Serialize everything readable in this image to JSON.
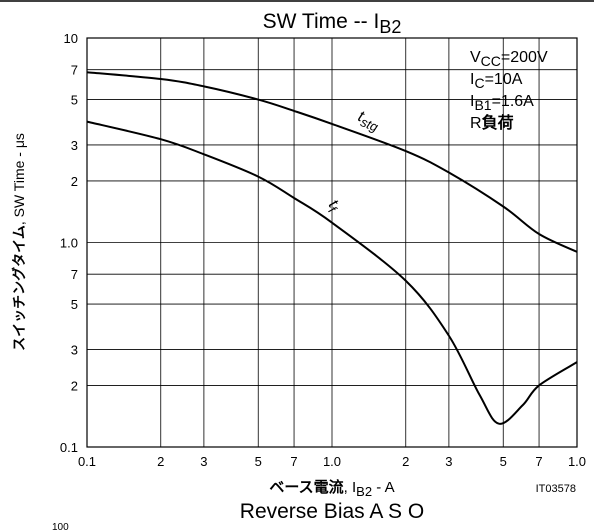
{
  "chart_data": {
    "type": "line",
    "title": {
      "text": "SW Time  --  I",
      "sub": "B2"
    },
    "ylabel": {
      "bold": "スイッチングタイム",
      "rest": ", SW Time  -  μs"
    },
    "xlabel": {
      "bold": "ベース電流",
      "text": ", I",
      "sub": "B2",
      "rest": "  -  A"
    },
    "code": "IT03578",
    "next_title": "Reverse Bias A S O",
    "next_tick": "100",
    "conditions": [
      {
        "text": "V",
        "sub": "CC",
        "rest": "=200V"
      },
      {
        "text": "I",
        "sub": "C",
        "rest": "=10A"
      },
      {
        "text": "I",
        "sub": "B1",
        "rest": "=1.6A"
      },
      {
        "text": "R",
        "sub": "",
        "rest": "負荷"
      }
    ],
    "log_x": true,
    "log_y": true,
    "grid": true,
    "xlim": [
      0.1,
      10
    ],
    "ylim": [
      0.1,
      10
    ],
    "xticks": [
      0.1,
      {
        "value": 0.2,
        "label": "2"
      },
      {
        "value": 0.3,
        "label": "3"
      },
      {
        "value": 0.5,
        "label": "5"
      },
      {
        "value": 0.7,
        "label": "7"
      },
      {
        "value": 1,
        "label": "1.0"
      },
      2,
      3,
      5,
      7,
      {
        "value": 10,
        "label": "1.0"
      }
    ],
    "yticks": [
      10,
      7,
      5,
      3,
      2,
      {
        "value": 1,
        "label": "1.0"
      },
      {
        "value": 0.7,
        "label": "7"
      },
      {
        "value": 0.5,
        "label": "5"
      },
      {
        "value": 0.3,
        "label": "3"
      },
      {
        "value": 0.2,
        "label": "2"
      },
      0.1
    ],
    "series": [
      {
        "label": {
          "text": "t",
          "sub": "stg"
        },
        "color": "#000000",
        "x": [
          0.1,
          0.2,
          0.3,
          0.5,
          0.7,
          1,
          2,
          3,
          5,
          7,
          10
        ],
        "values": [
          6.8,
          6.3,
          5.8,
          5.0,
          4.4,
          3.8,
          2.8,
          2.2,
          1.5,
          1.1,
          0.9
        ]
      },
      {
        "label": {
          "text": "t",
          "sub": "f"
        },
        "color": "#000000",
        "x": [
          0.1,
          0.2,
          0.3,
          0.5,
          0.7,
          1,
          2,
          3,
          4,
          4.8,
          6,
          7,
          10
        ],
        "values": [
          3.9,
          3.2,
          2.7,
          2.1,
          1.65,
          1.25,
          0.65,
          0.35,
          0.18,
          0.13,
          0.16,
          0.2,
          0.26
        ]
      }
    ]
  }
}
